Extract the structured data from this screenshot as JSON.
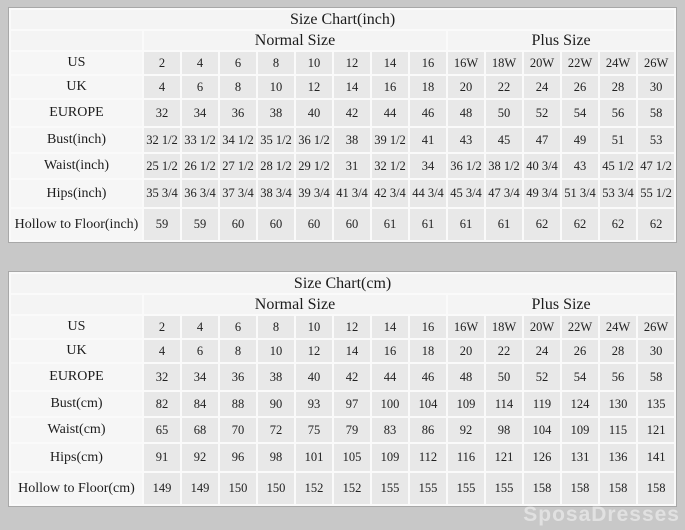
{
  "watermark": {
    "text": "SposaDresses"
  },
  "chart_data": [
    {
      "type": "table",
      "title": "Size Chart(inch)",
      "column_groups": [
        {
          "label": "Normal Size",
          "span": 8
        },
        {
          "label": "Plus Size",
          "span": 6
        }
      ],
      "rows": [
        {
          "label": "US",
          "values": [
            "2",
            "4",
            "6",
            "8",
            "10",
            "12",
            "14",
            "16",
            "16W",
            "18W",
            "20W",
            "22W",
            "24W",
            "26W"
          ]
        },
        {
          "label": "UK",
          "values": [
            "4",
            "6",
            "8",
            "10",
            "12",
            "14",
            "16",
            "18",
            "20",
            "22",
            "24",
            "26",
            "28",
            "30"
          ]
        },
        {
          "label": "EUROPE",
          "values": [
            "32",
            "34",
            "36",
            "38",
            "40",
            "42",
            "44",
            "46",
            "48",
            "50",
            "52",
            "54",
            "56",
            "58"
          ]
        },
        {
          "label": "Bust(inch)",
          "values": [
            "32 1/2",
            "33 1/2",
            "34 1/2",
            "35 1/2",
            "36 1/2",
            "38",
            "39 1/2",
            "41",
            "43",
            "45",
            "47",
            "49",
            "51",
            "53"
          ]
        },
        {
          "label": "Waist(inch)",
          "values": [
            "25 1/2",
            "26 1/2",
            "27 1/2",
            "28 1/2",
            "29 1/2",
            "31",
            "32 1/2",
            "34",
            "36 1/2",
            "38 1/2",
            "40 3/4",
            "43",
            "45 1/2",
            "47 1/2"
          ]
        },
        {
          "label": "Hips(inch)",
          "values": [
            "35 3/4",
            "36 3/4",
            "37 3/4",
            "38 3/4",
            "39 3/4",
            "41 3/4",
            "42 3/4",
            "44 3/4",
            "45 3/4",
            "47 3/4",
            "49 3/4",
            "51 3/4",
            "53 3/4",
            "55 1/2"
          ]
        },
        {
          "label": "Hollow to Floor(inch)",
          "values": [
            "59",
            "59",
            "60",
            "60",
            "60",
            "60",
            "61",
            "61",
            "61",
            "61",
            "62",
            "62",
            "62",
            "62"
          ]
        }
      ]
    },
    {
      "type": "table",
      "title": "Size Chart(cm)",
      "column_groups": [
        {
          "label": "Normal Size",
          "span": 8
        },
        {
          "label": "Plus Size",
          "span": 6
        }
      ],
      "rows": [
        {
          "label": "US",
          "values": [
            "2",
            "4",
            "6",
            "8",
            "10",
            "12",
            "14",
            "16",
            "16W",
            "18W",
            "20W",
            "22W",
            "24W",
            "26W"
          ]
        },
        {
          "label": "UK",
          "values": [
            "4",
            "6",
            "8",
            "10",
            "12",
            "14",
            "16",
            "18",
            "20",
            "22",
            "24",
            "26",
            "28",
            "30"
          ]
        },
        {
          "label": "EUROPE",
          "values": [
            "32",
            "34",
            "36",
            "38",
            "40",
            "42",
            "44",
            "46",
            "48",
            "50",
            "52",
            "54",
            "56",
            "58"
          ]
        },
        {
          "label": "Bust(cm)",
          "values": [
            "82",
            "84",
            "88",
            "90",
            "93",
            "97",
            "100",
            "104",
            "109",
            "114",
            "119",
            "124",
            "130",
            "135"
          ]
        },
        {
          "label": "Waist(cm)",
          "values": [
            "65",
            "68",
            "70",
            "72",
            "75",
            "79",
            "83",
            "86",
            "92",
            "98",
            "104",
            "109",
            "115",
            "121"
          ]
        },
        {
          "label": "Hips(cm)",
          "values": [
            "91",
            "92",
            "96",
            "98",
            "101",
            "105",
            "109",
            "112",
            "116",
            "121",
            "126",
            "131",
            "136",
            "141"
          ]
        },
        {
          "label": "Hollow to Floor(cm)",
          "values": [
            "149",
            "149",
            "150",
            "150",
            "152",
            "152",
            "155",
            "155",
            "155",
            "155",
            "158",
            "158",
            "158",
            "158"
          ]
        }
      ]
    }
  ],
  "layout_colors": {
    "page_background": "#c8c8c8",
    "grid_background": "#fafafa",
    "data_cell": "#e8e8e8",
    "header_cell": "#f4f4f4",
    "label_cell": "#f6f6f6",
    "text": "#1c1c1c"
  }
}
